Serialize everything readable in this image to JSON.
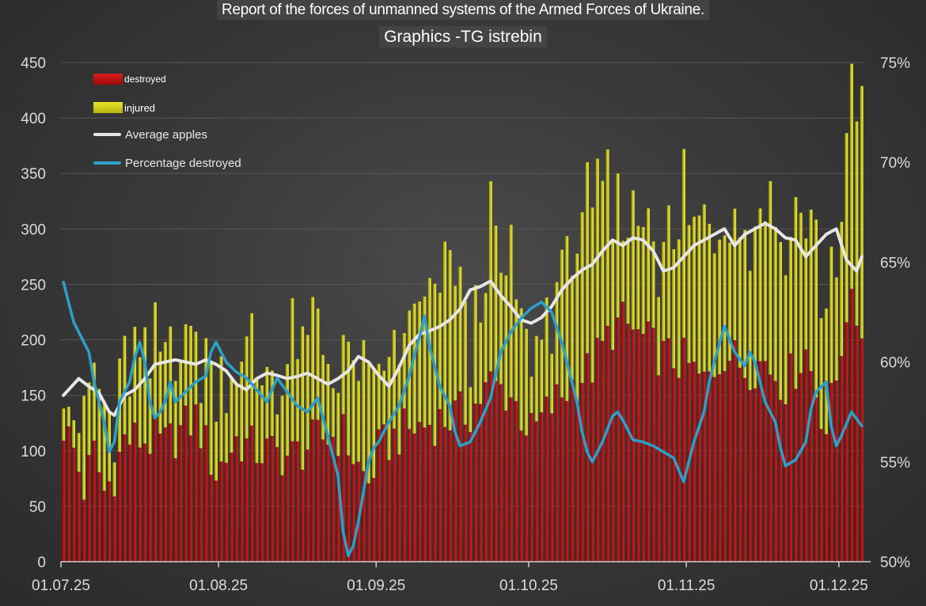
{
  "title": "Report of the forces of unmanned systems of the Armed Forces of Ukraine.",
  "subtitle": "Graphics -TG istrebin",
  "legend": {
    "destroyed": "destroyed",
    "injured": "injured",
    "average": "Average apples",
    "percentage": "Percentage destroyed"
  },
  "colors": {
    "destroyed": "#b80f0f",
    "injured": "#cfcb1c",
    "average": "#e6e6e6",
    "percentage": "#2ca0c8",
    "axis_text": "#dcdcdc"
  },
  "chart_data": {
    "type": "bar",
    "stacked": true,
    "start_date": "01.07.25",
    "end_date": "05.12.25",
    "days": 158,
    "x_ticks": [
      "01.07.25",
      "01.08.25",
      "01.09.25",
      "01.10.25",
      "01.11.25",
      "01.12.25"
    ],
    "y_left": {
      "min": 0,
      "max": 450,
      "step": 50,
      "ticks": [
        "0",
        "50",
        "100",
        "150",
        "200",
        "250",
        "300",
        "350",
        "400",
        "450"
      ]
    },
    "y_right": {
      "min": 50,
      "max": 75,
      "step": 5,
      "ticks": [
        "50%",
        "55%",
        "60%",
        "65%",
        "70%",
        "75%"
      ]
    },
    "keypoints": {
      "destroyed": [
        [
          0,
          123
        ],
        [
          2,
          100
        ],
        [
          4,
          66
        ],
        [
          6,
          98
        ],
        [
          8,
          63
        ],
        [
          10,
          80
        ],
        [
          12,
          110
        ],
        [
          16,
          110
        ],
        [
          20,
          105
        ],
        [
          26,
          130
        ],
        [
          30,
          80
        ],
        [
          34,
          110
        ],
        [
          38,
          100
        ],
        [
          45,
          95
        ],
        [
          50,
          110
        ],
        [
          55,
          115
        ],
        [
          58,
          85
        ],
        [
          60,
          70
        ],
        [
          62,
          100
        ],
        [
          66,
          115
        ],
        [
          72,
          125
        ],
        [
          76,
          130
        ],
        [
          80,
          135
        ],
        [
          84,
          160
        ],
        [
          88,
          150
        ],
        [
          92,
          115
        ],
        [
          96,
          140
        ],
        [
          100,
          160
        ],
        [
          104,
          175
        ],
        [
          108,
          210
        ],
        [
          110,
          215
        ],
        [
          114,
          200
        ],
        [
          118,
          185
        ],
        [
          122,
          180
        ],
        [
          126,
          160
        ],
        [
          130,
          190
        ],
        [
          134,
          175
        ],
        [
          138,
          180
        ],
        [
          142,
          160
        ],
        [
          146,
          190
        ],
        [
          150,
          120
        ],
        [
          152,
          165
        ],
        [
          154,
          230
        ],
        [
          157,
          215
        ]
      ],
      "injured": [
        [
          0,
          65
        ],
        [
          2,
          35
        ],
        [
          4,
          60
        ],
        [
          6,
          65
        ],
        [
          8,
          75
        ],
        [
          10,
          40
        ],
        [
          12,
          65
        ],
        [
          16,
          70
        ],
        [
          20,
          75
        ],
        [
          22,
          100
        ],
        [
          26,
          60
        ],
        [
          30,
          90
        ],
        [
          34,
          70
        ],
        [
          38,
          80
        ],
        [
          42,
          60
        ],
        [
          45,
          95
        ],
        [
          50,
          90
        ],
        [
          55,
          60
        ],
        [
          58,
          95
        ],
        [
          60,
          80
        ],
        [
          62,
          60
        ],
        [
          66,
          80
        ],
        [
          70,
          100
        ],
        [
          72,
          110
        ],
        [
          74,
          120
        ],
        [
          76,
          150
        ],
        [
          80,
          60
        ],
        [
          84,
          135
        ],
        [
          86,
          100
        ],
        [
          88,
          120
        ],
        [
          92,
          60
        ],
        [
          94,
          70
        ],
        [
          96,
          90
        ],
        [
          98,
          100
        ],
        [
          100,
          130
        ],
        [
          102,
          165
        ],
        [
          104,
          120
        ],
        [
          106,
          140
        ],
        [
          108,
          110
        ],
        [
          110,
          90
        ],
        [
          114,
          110
        ],
        [
          118,
          100
        ],
        [
          120,
          95
        ],
        [
          122,
          150
        ],
        [
          124,
          125
        ],
        [
          126,
          145
        ],
        [
          128,
          140
        ],
        [
          130,
          130
        ],
        [
          132,
          150
        ],
        [
          134,
          120
        ],
        [
          136,
          145
        ],
        [
          140,
          155
        ],
        [
          142,
          120
        ],
        [
          144,
          160
        ],
        [
          146,
          120
        ],
        [
          148,
          140
        ],
        [
          150,
          110
        ],
        [
          152,
          115
        ],
        [
          154,
          150
        ],
        [
          156,
          190
        ],
        [
          157,
          215
        ]
      ],
      "average": [
        [
          0,
          150
        ],
        [
          3,
          165
        ],
        [
          5,
          158
        ],
        [
          7,
          152
        ],
        [
          9,
          135
        ],
        [
          10,
          132
        ],
        [
          12,
          150
        ],
        [
          14,
          155
        ],
        [
          16,
          165
        ],
        [
          18,
          178
        ],
        [
          20,
          180
        ],
        [
          22,
          182
        ],
        [
          24,
          180
        ],
        [
          26,
          178
        ],
        [
          28,
          182
        ],
        [
          30,
          178
        ],
        [
          32,
          172
        ],
        [
          34,
          160
        ],
        [
          36,
          155
        ],
        [
          38,
          165
        ],
        [
          40,
          170
        ],
        [
          42,
          168
        ],
        [
          44,
          165
        ],
        [
          46,
          167
        ],
        [
          48,
          170
        ],
        [
          50,
          165
        ],
        [
          52,
          160
        ],
        [
          54,
          165
        ],
        [
          56,
          172
        ],
        [
          58,
          185
        ],
        [
          60,
          180
        ],
        [
          62,
          168
        ],
        [
          64,
          158
        ],
        [
          66,
          175
        ],
        [
          68,
          195
        ],
        [
          70,
          205
        ],
        [
          72,
          208
        ],
        [
          74,
          212
        ],
        [
          76,
          218
        ],
        [
          78,
          228
        ],
        [
          80,
          245
        ],
        [
          82,
          248
        ],
        [
          84,
          253
        ],
        [
          86,
          240
        ],
        [
          88,
          230
        ],
        [
          90,
          218
        ],
        [
          92,
          215
        ],
        [
          94,
          220
        ],
        [
          96,
          230
        ],
        [
          98,
          245
        ],
        [
          100,
          255
        ],
        [
          102,
          263
        ],
        [
          104,
          268
        ],
        [
          106,
          280
        ],
        [
          108,
          290
        ],
        [
          110,
          285
        ],
        [
          112,
          292
        ],
        [
          114,
          290
        ],
        [
          116,
          280
        ],
        [
          118,
          262
        ],
        [
          120,
          265
        ],
        [
          122,
          275
        ],
        [
          124,
          285
        ],
        [
          126,
          290
        ],
        [
          128,
          295
        ],
        [
          130,
          300
        ],
        [
          132,
          285
        ],
        [
          134,
          295
        ],
        [
          136,
          300
        ],
        [
          138,
          305
        ],
        [
          140,
          300
        ],
        [
          142,
          292
        ],
        [
          144,
          290
        ],
        [
          146,
          275
        ],
        [
          148,
          285
        ],
        [
          150,
          295
        ],
        [
          152,
          300
        ],
        [
          154,
          272
        ],
        [
          156,
          262
        ],
        [
          157,
          275
        ]
      ],
      "percentage": [
        [
          0,
          64
        ],
        [
          1,
          63
        ],
        [
          2,
          62
        ],
        [
          4,
          61
        ],
        [
          5,
          60.5
        ],
        [
          6,
          59
        ],
        [
          8,
          57
        ],
        [
          9,
          55.5
        ],
        [
          10,
          56
        ],
        [
          11,
          58
        ],
        [
          13,
          59
        ],
        [
          14,
          60.2
        ],
        [
          15,
          61
        ],
        [
          16,
          60
        ],
        [
          17,
          58
        ],
        [
          18,
          57.2
        ],
        [
          19,
          57.5
        ],
        [
          20,
          58
        ],
        [
          21,
          59
        ],
        [
          22,
          58
        ],
        [
          24,
          58.5
        ],
        [
          26,
          59
        ],
        [
          28,
          59.3
        ],
        [
          29,
          60.5
        ],
        [
          30,
          61
        ],
        [
          32,
          60
        ],
        [
          34,
          59.5
        ],
        [
          36,
          59.2
        ],
        [
          38,
          58.6
        ],
        [
          40,
          58
        ],
        [
          42,
          59.2
        ],
        [
          44,
          58.5
        ],
        [
          46,
          57.8
        ],
        [
          48,
          57.5
        ],
        [
          50,
          58.2
        ],
        [
          52,
          56.3
        ],
        [
          54,
          54.3
        ],
        [
          55,
          51.5
        ],
        [
          56,
          50.3
        ],
        [
          57,
          50.8
        ],
        [
          58,
          52
        ],
        [
          59,
          53.5
        ],
        [
          60,
          55
        ],
        [
          61,
          55.7
        ],
        [
          62,
          56
        ],
        [
          64,
          57
        ],
        [
          66,
          57.8
        ],
        [
          68,
          59.3
        ],
        [
          69,
          60.3
        ],
        [
          70,
          61.2
        ],
        [
          71,
          62.3
        ],
        [
          72,
          60.8
        ],
        [
          74,
          58.8
        ],
        [
          76,
          57.8
        ],
        [
          77,
          56.5
        ],
        [
          78,
          55.8
        ],
        [
          80,
          56
        ],
        [
          82,
          57
        ],
        [
          84,
          58.2
        ],
        [
          86,
          60.5
        ],
        [
          88,
          61.5
        ],
        [
          90,
          62.2
        ],
        [
          92,
          62.7
        ],
        [
          94,
          63
        ],
        [
          96,
          62.5
        ],
        [
          98,
          61
        ],
        [
          100,
          59
        ],
        [
          101,
          58
        ],
        [
          102,
          56.5
        ],
        [
          103,
          55.5
        ],
        [
          104,
          55
        ],
        [
          106,
          56
        ],
        [
          108,
          57.3
        ],
        [
          109,
          57.5
        ],
        [
          110,
          57.1
        ],
        [
          112,
          56.1
        ],
        [
          114,
          56
        ],
        [
          116,
          55.8
        ],
        [
          118,
          55.5
        ],
        [
          120,
          55.2
        ],
        [
          122,
          54
        ],
        [
          124,
          56
        ],
        [
          126,
          57.5
        ],
        [
          127,
          59
        ],
        [
          128,
          60
        ],
        [
          130,
          61.8
        ],
        [
          132,
          60.5
        ],
        [
          134,
          59.8
        ],
        [
          135,
          60.5
        ],
        [
          136,
          60
        ],
        [
          138,
          58
        ],
        [
          140,
          57
        ],
        [
          141,
          55.7
        ],
        [
          142,
          54.8
        ],
        [
          144,
          55.1
        ],
        [
          146,
          56
        ],
        [
          147,
          57.6
        ],
        [
          148,
          58.5
        ],
        [
          150,
          59
        ],
        [
          151,
          56.8
        ],
        [
          152,
          55.8
        ],
        [
          153,
          56.3
        ],
        [
          155,
          57.5
        ],
        [
          157,
          56.8
        ]
      ]
    }
  }
}
